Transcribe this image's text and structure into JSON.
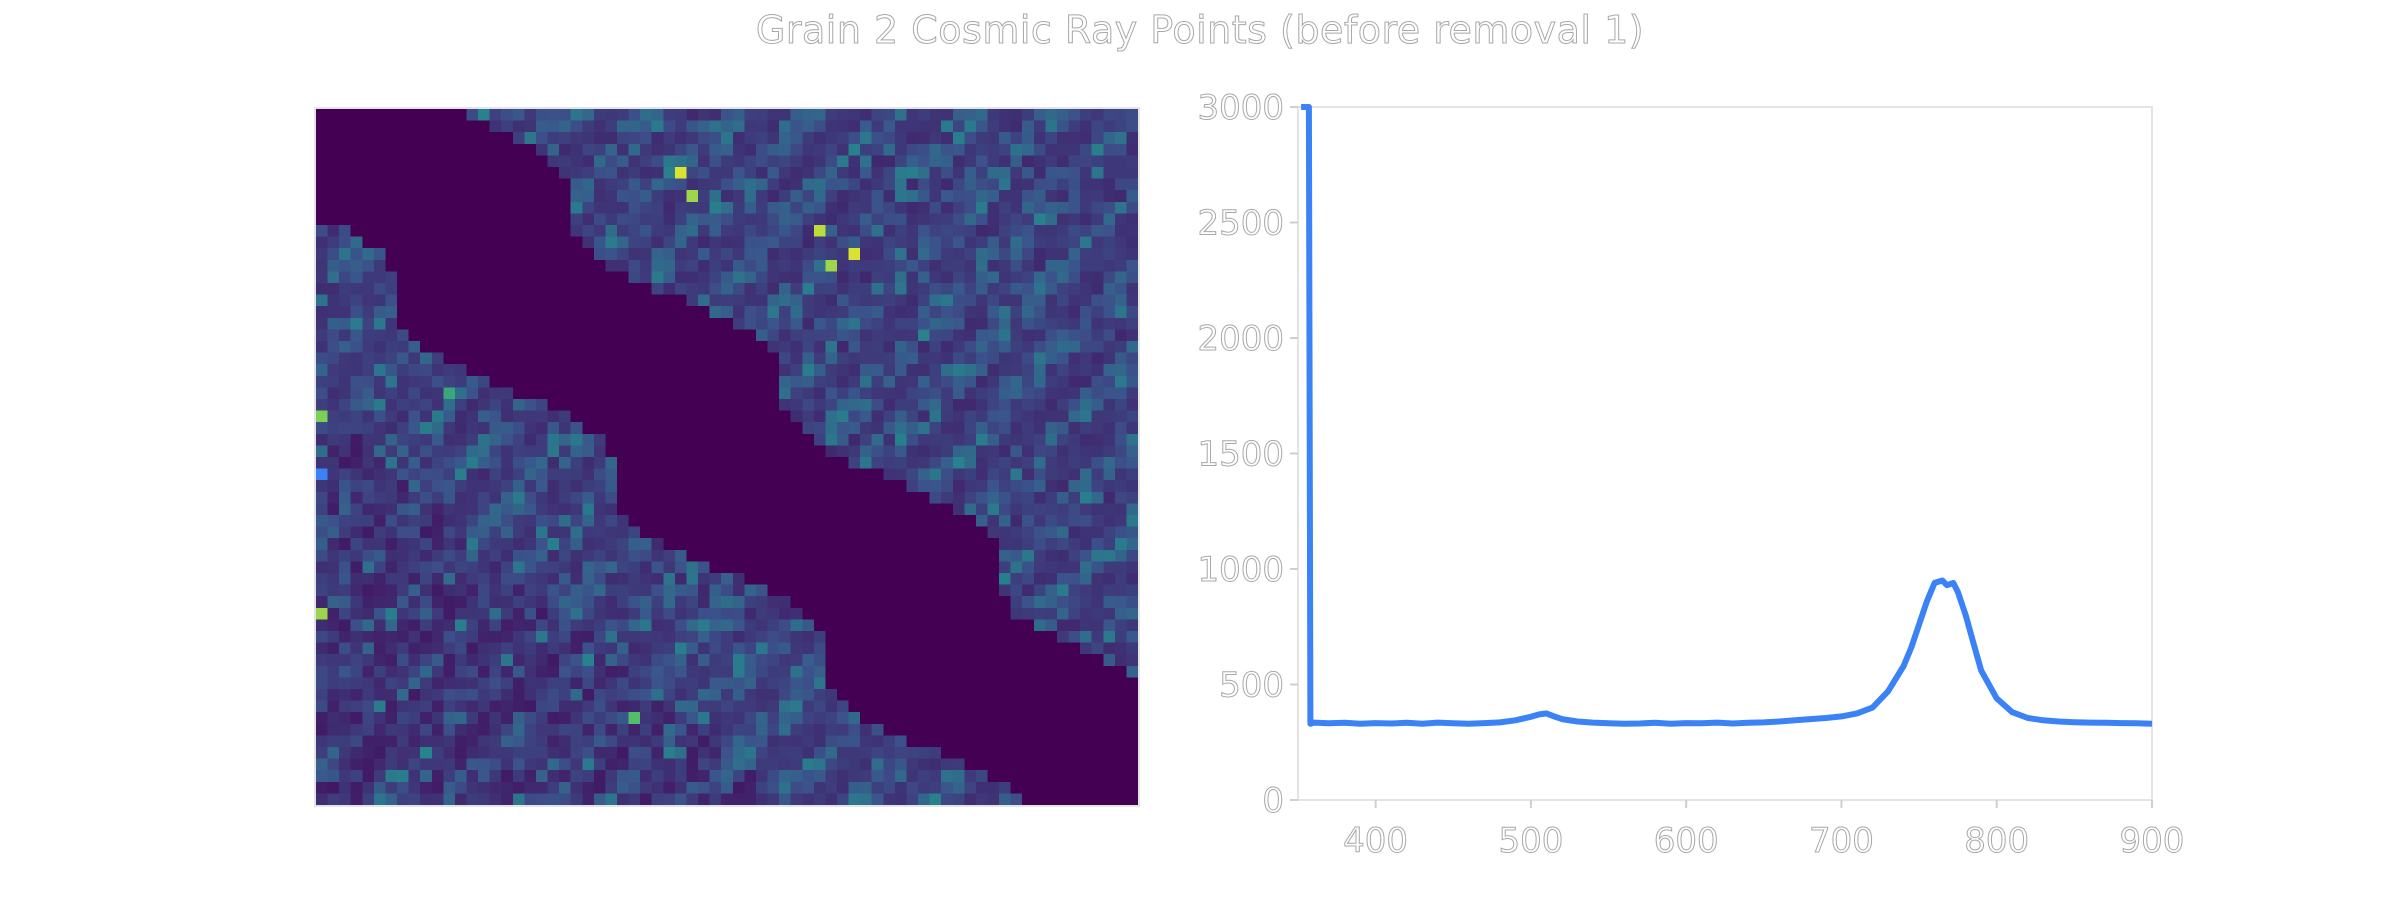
{
  "title": "Grain 2 Cosmic Ray Points (before removal 1)",
  "chart_data": [
    {
      "type": "heatmap",
      "colormap": "viridis",
      "rows": 60,
      "cols": 71,
      "marker": {
        "color": "#3b82f6",
        "row": 31,
        "col": 0
      },
      "hotspots": [
        {
          "row": 5,
          "col": 31,
          "level": 0.95
        },
        {
          "row": 7,
          "col": 32,
          "level": 0.85
        },
        {
          "row": 10,
          "col": 43,
          "level": 0.9
        },
        {
          "row": 12,
          "col": 46,
          "level": 0.95
        },
        {
          "row": 13,
          "col": 44,
          "level": 0.85
        },
        {
          "row": 24,
          "col": 11,
          "level": 0.6
        },
        {
          "row": 26,
          "col": 0,
          "level": 0.8
        },
        {
          "row": 43,
          "col": 0,
          "level": 0.85
        },
        {
          "row": 52,
          "col": 27,
          "level": 0.7
        }
      ]
    },
    {
      "type": "line",
      "color": "#3b82f6",
      "xlim": [
        350,
        900
      ],
      "ylim": [
        0,
        3000
      ],
      "xticks": [
        "400",
        "500",
        "600",
        "700",
        "800",
        "900"
      ],
      "yticks": [
        "0",
        "500",
        "1000",
        "1500",
        "2000",
        "2500",
        "3000"
      ],
      "series": [
        {
          "x": [
            352,
            353,
            354,
            355,
            356,
            357,
            358,
            360,
            370,
            380,
            390,
            400,
            410,
            420,
            430,
            440,
            450,
            460,
            470,
            480,
            490,
            500,
            505,
            510,
            515,
            520,
            530,
            540,
            550,
            560,
            570,
            580,
            590,
            600,
            610,
            620,
            630,
            640,
            650,
            660,
            670,
            680,
            690,
            700,
            710,
            720,
            730,
            740,
            745,
            750,
            755,
            760,
            765,
            768,
            772,
            775,
            780,
            785,
            790,
            800,
            810,
            820,
            830,
            840,
            850,
            860,
            870,
            880,
            890,
            900
          ],
          "y": [
            3000,
            3000,
            3000,
            3000,
            3000,
            3000,
            330,
            335,
            332,
            334,
            330,
            333,
            331,
            334,
            330,
            335,
            332,
            330,
            333,
            336,
            345,
            360,
            370,
            375,
            362,
            350,
            340,
            335,
            332,
            330,
            331,
            334,
            330,
            333,
            332,
            335,
            331,
            334,
            336,
            340,
            345,
            350,
            355,
            362,
            375,
            400,
            470,
            580,
            660,
            760,
            860,
            940,
            950,
            930,
            940,
            900,
            800,
            680,
            560,
            440,
            380,
            355,
            345,
            340,
            337,
            335,
            334,
            333,
            332,
            330
          ]
        }
      ]
    }
  ]
}
